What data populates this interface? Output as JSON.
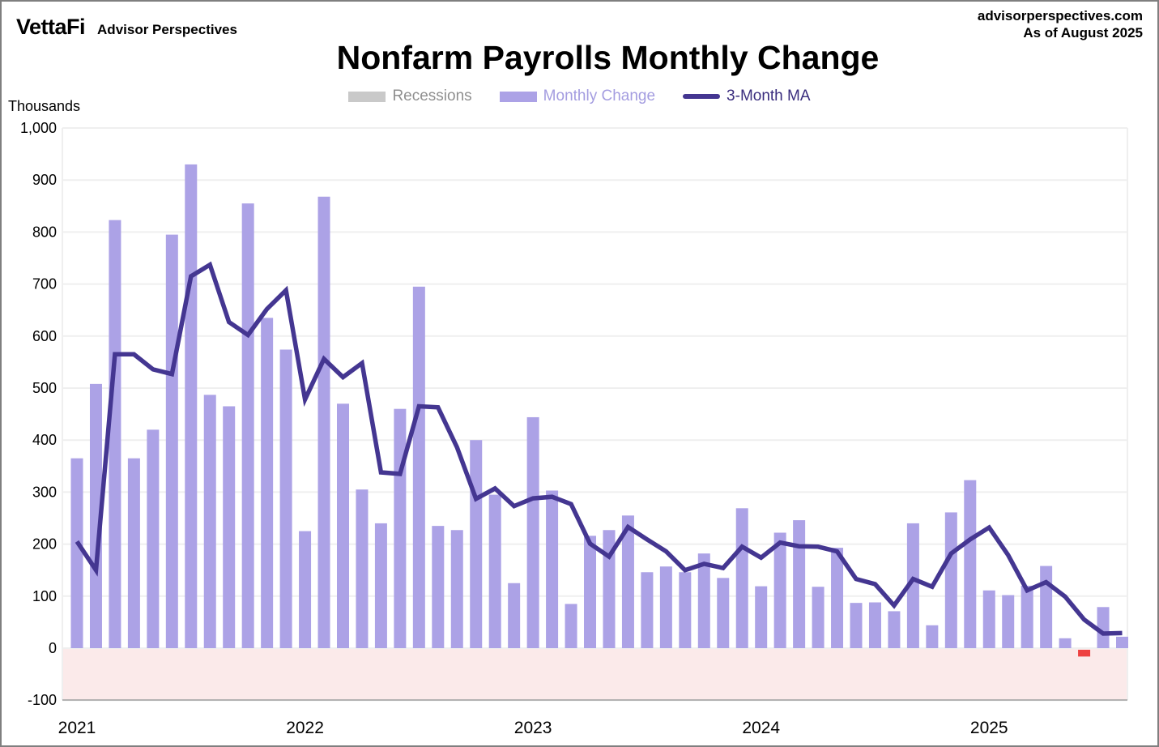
{
  "header": {
    "logo_primary": "VettaFi",
    "logo_secondary": "Advisor Perspectives",
    "site": "advisorperspectives.com",
    "as_of": "As of August 2025"
  },
  "title": "Nonfarm Payrolls Monthly Change",
  "axis_unit_label": "Thousands",
  "legend": [
    {
      "label": "Recessions",
      "type": "box",
      "swatch_color": "#C9C9C9",
      "text_color": "#8F8F8F"
    },
    {
      "label": "Monthly Change",
      "type": "box",
      "swatch_color": "#ACA2E6",
      "text_color": "#A49DE0"
    },
    {
      "label": "3-Month MA",
      "type": "line",
      "swatch_color": "#443691",
      "text_color": "#3A2D7E"
    }
  ],
  "chart_data": {
    "type": "bar",
    "title": "Nonfarm Payrolls Monthly Change",
    "ylabel": "Thousands",
    "unit": "thousands of jobs",
    "ylim": [
      -100,
      1000
    ],
    "grid": true,
    "legend_position": "top",
    "yticks": [
      {
        "value": 1000,
        "label": "1,000"
      },
      {
        "value": 900,
        "label": "900"
      },
      {
        "value": 800,
        "label": "800"
      },
      {
        "value": 700,
        "label": "700"
      },
      {
        "value": 600,
        "label": "600"
      },
      {
        "value": 500,
        "label": "500"
      },
      {
        "value": 400,
        "label": "400"
      },
      {
        "value": 300,
        "label": "300"
      },
      {
        "value": 200,
        "label": "200"
      },
      {
        "value": 100,
        "label": "100"
      },
      {
        "value": 0,
        "label": "0"
      },
      {
        "value": -100,
        "label": "-100"
      }
    ],
    "x_year_labels": [
      {
        "label": "2021",
        "month_index": 0
      },
      {
        "label": "2022",
        "month_index": 12
      },
      {
        "label": "2023",
        "month_index": 24
      },
      {
        "label": "2024",
        "month_index": 36
      },
      {
        "label": "2025",
        "month_index": 48
      }
    ],
    "categories": [
      "2021-01",
      "2021-02",
      "2021-03",
      "2021-04",
      "2021-05",
      "2021-06",
      "2021-07",
      "2021-08",
      "2021-09",
      "2021-10",
      "2021-11",
      "2021-12",
      "2022-01",
      "2022-02",
      "2022-03",
      "2022-04",
      "2022-05",
      "2022-06",
      "2022-07",
      "2022-08",
      "2022-09",
      "2022-10",
      "2022-11",
      "2022-12",
      "2023-01",
      "2023-02",
      "2023-03",
      "2023-04",
      "2023-05",
      "2023-06",
      "2023-07",
      "2023-08",
      "2023-09",
      "2023-10",
      "2023-11",
      "2023-12",
      "2024-01",
      "2024-02",
      "2024-03",
      "2024-04",
      "2024-05",
      "2024-06",
      "2024-07",
      "2024-08",
      "2024-09",
      "2024-10",
      "2024-11",
      "2024-12",
      "2025-01",
      "2025-02",
      "2025-03",
      "2025-04",
      "2025-05",
      "2025-06",
      "2025-07",
      "2025-08"
    ],
    "series": [
      {
        "name": "Monthly Change",
        "type": "bar",
        "color": "#ACA2E6",
        "negative_color": "#EE4141",
        "values": [
          365,
          508,
          823,
          365,
          420,
          795,
          930,
          487,
          465,
          855,
          635,
          574,
          225,
          868,
          470,
          305,
          240,
          460,
          695,
          235,
          227,
          400,
          295,
          125,
          444,
          303,
          85,
          216,
          227,
          255,
          146,
          157,
          146,
          182,
          135,
          269,
          119,
          222,
          246,
          118,
          193,
          87,
          88,
          71,
          240,
          44,
          261,
          323,
          111,
          102,
          120,
          158,
          19,
          -13,
          79,
          22
        ]
      },
      {
        "name": "3-Month MA",
        "type": "line",
        "color": "#443691",
        "values": [
          205,
          150,
          565,
          565,
          536,
          527,
          715,
          737,
          627,
          602,
          652,
          688,
          478,
          556,
          521,
          548,
          338,
          335,
          465,
          463,
          386,
          287,
          307,
          273,
          288,
          291,
          277,
          201,
          176,
          233,
          209,
          186,
          150,
          162,
          154,
          195,
          174,
          203,
          196,
          195,
          186,
          133,
          123,
          82,
          133,
          118,
          182,
          209,
          232,
          179,
          111,
          127,
          99,
          55,
          28,
          29
        ]
      }
    ],
    "negative_region_color": "#FBEAEA",
    "gridline_color": "#EFEFEF",
    "axis_line_color": "#9E9E9E"
  }
}
